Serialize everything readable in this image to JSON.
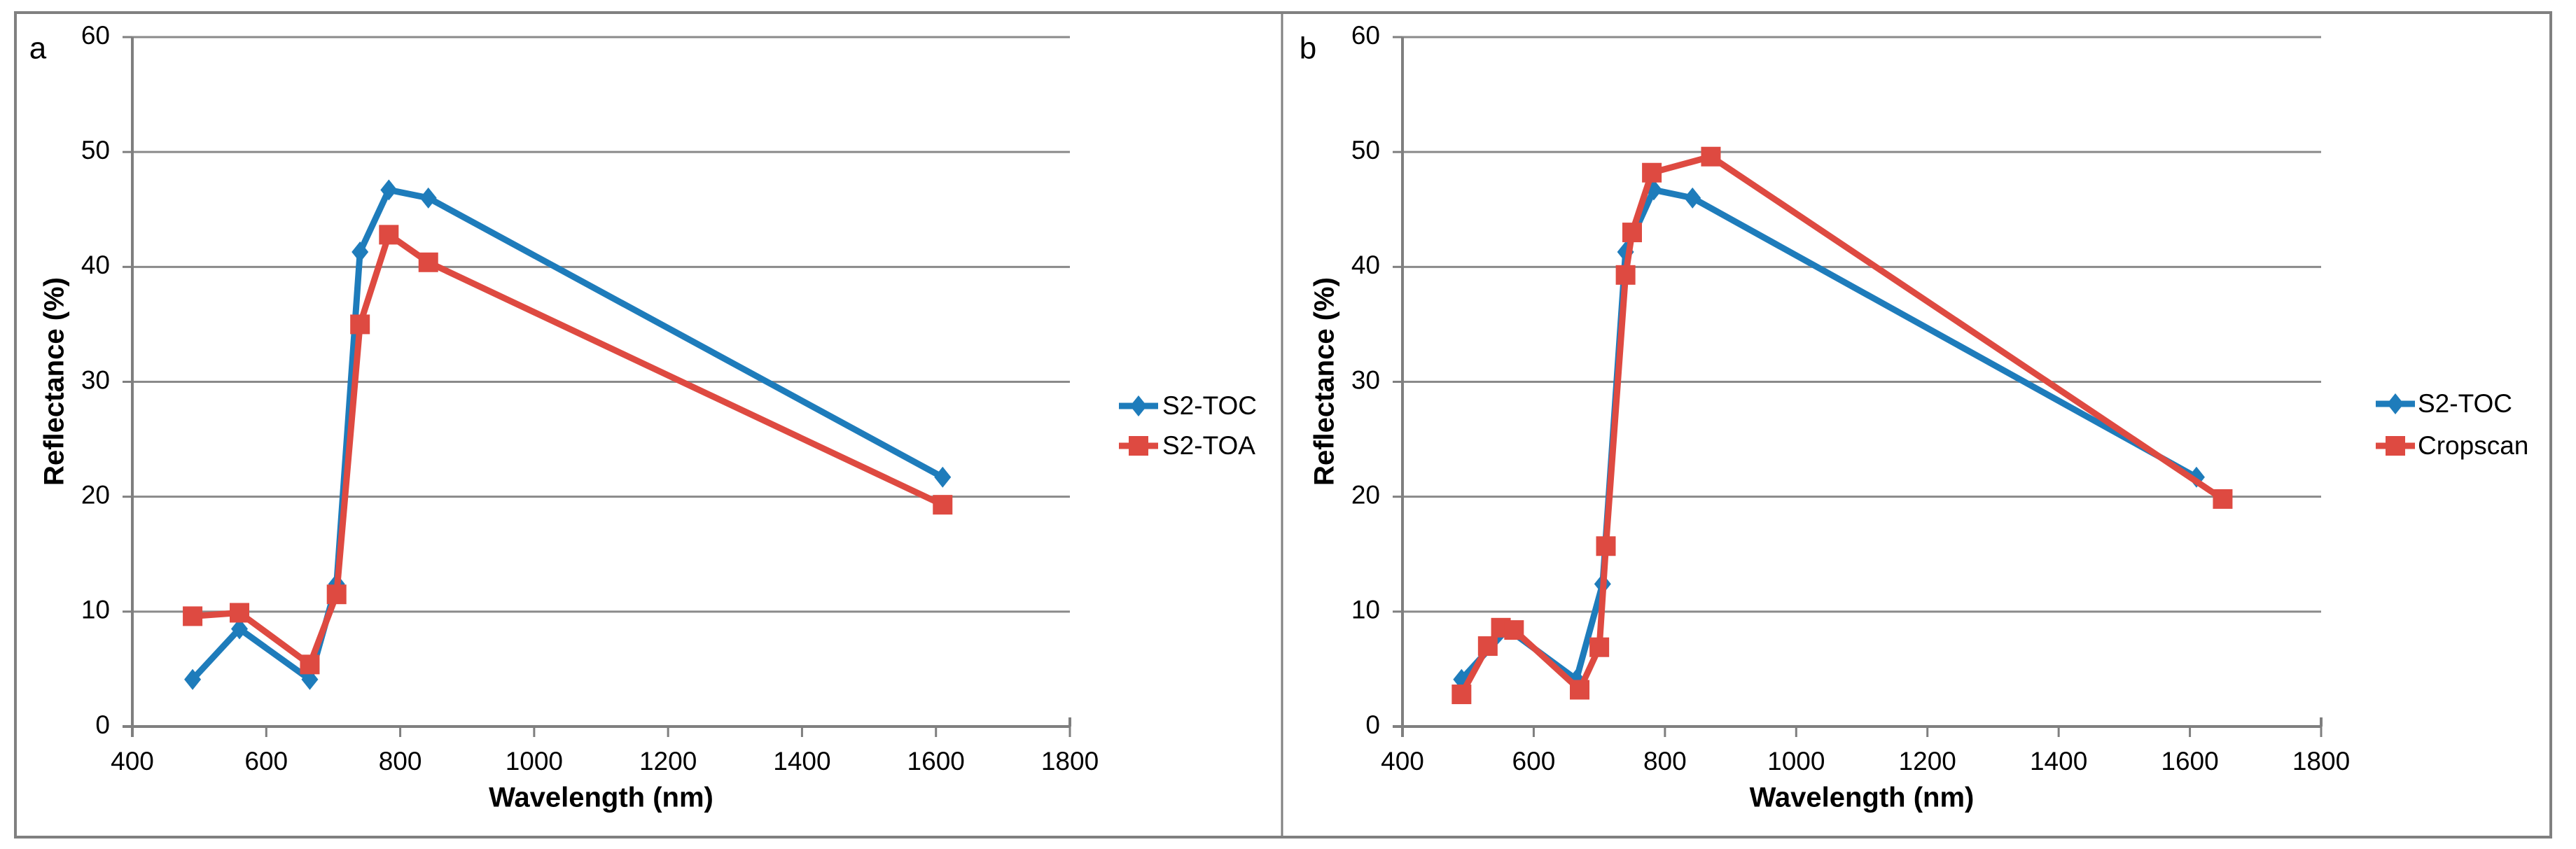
{
  "figure": {
    "background": "#ffffff",
    "border_color": "#808080",
    "divider_color": "#808080",
    "grid_color": "#8a8a8a",
    "axis_color": "#7f7f7f",
    "text_color": "#000000"
  },
  "chart_data": [
    {
      "panel_label": "a",
      "type": "line",
      "xlabel": "Wavelength (nm)",
      "ylabel": "Reflectance (%)",
      "xlim": [
        400,
        1800
      ],
      "ylim": [
        0,
        60
      ],
      "xticks": [
        400,
        600,
        800,
        1000,
        1200,
        1400,
        1600,
        1800
      ],
      "yticks": [
        0,
        10,
        20,
        30,
        40,
        50,
        60
      ],
      "grid": "horizontal",
      "legend_position": "right",
      "series": [
        {
          "name": "S2-TOC",
          "color": "#1e7cbb",
          "marker": "diamond",
          "x": [
            490,
            560,
            665,
            705,
            740,
            783,
            842,
            1610
          ],
          "y": [
            4.1,
            8.5,
            4.1,
            12.4,
            41.3,
            46.7,
            46.0,
            21.7
          ]
        },
        {
          "name": "S2-TOA",
          "color": "#de4a41",
          "marker": "square",
          "x": [
            490,
            560,
            665,
            705,
            740,
            783,
            842,
            1610
          ],
          "y": [
            9.6,
            9.9,
            5.4,
            11.5,
            35.0,
            42.8,
            40.4,
            19.3
          ]
        }
      ]
    },
    {
      "panel_label": "b",
      "type": "line",
      "xlabel": "Wavelength (nm)",
      "ylabel": "Reflectance (%)",
      "xlim": [
        400,
        1800
      ],
      "ylim": [
        0,
        60
      ],
      "xticks": [
        400,
        600,
        800,
        1000,
        1200,
        1400,
        1600,
        1800
      ],
      "yticks": [
        0,
        10,
        20,
        30,
        40,
        50,
        60
      ],
      "grid": "horizontal",
      "legend_position": "right",
      "series": [
        {
          "name": "S2-TOC",
          "color": "#1e7cbb",
          "marker": "diamond",
          "x": [
            490,
            560,
            665,
            705,
            740,
            783,
            842,
            1610
          ],
          "y": [
            4.1,
            8.5,
            4.1,
            12.4,
            41.3,
            46.7,
            46.0,
            21.7
          ]
        },
        {
          "name": "Cropscan",
          "color": "#de4a41",
          "marker": "square",
          "x": [
            490,
            530,
            550,
            570,
            670,
            700,
            710,
            740,
            750,
            780,
            870,
            1650
          ],
          "y": [
            2.8,
            7.0,
            8.6,
            8.4,
            3.2,
            6.9,
            15.7,
            39.3,
            43.0,
            48.2,
            49.6,
            19.8
          ]
        }
      ]
    }
  ]
}
